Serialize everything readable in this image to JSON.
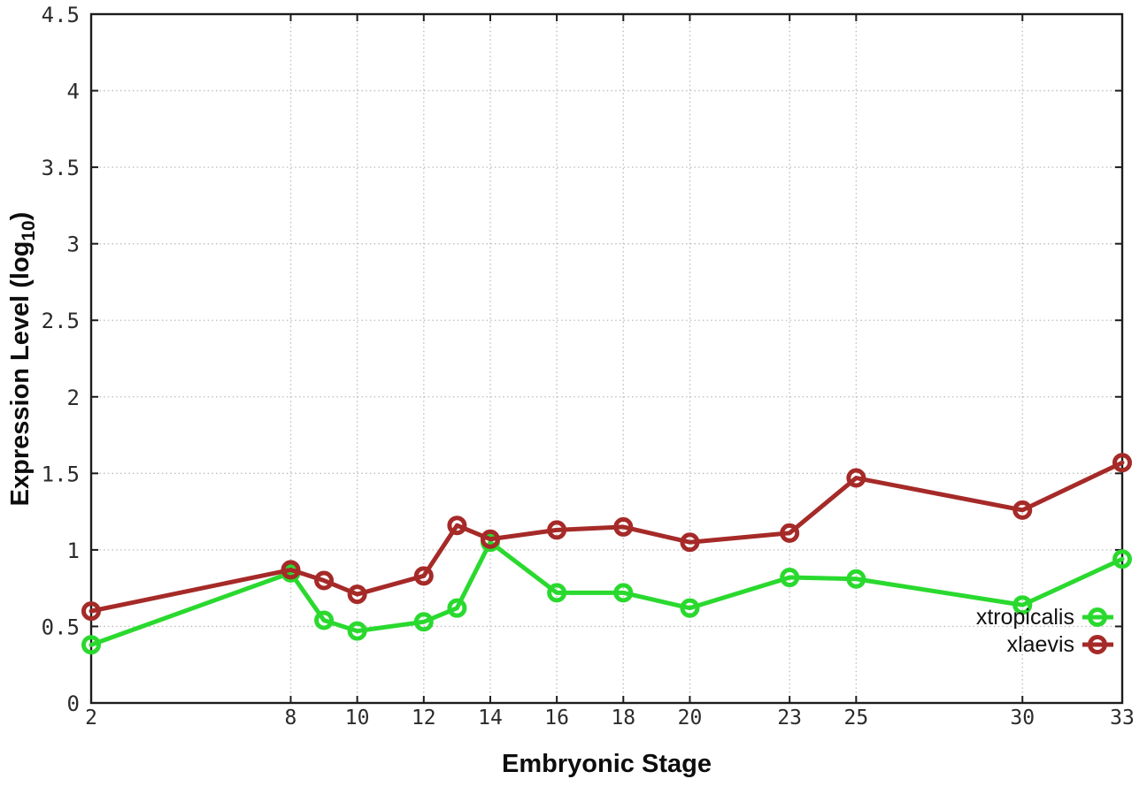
{
  "chart_data": {
    "type": "line",
    "title": "",
    "xlabel": "Embryonic Stage",
    "ylabel": "Expression Level (log10)",
    "ylabel_parts": {
      "pre": "Expression Level (log",
      "sub": "10",
      "post": ")"
    },
    "x": [
      2,
      8,
      9,
      10,
      12,
      13,
      14,
      16,
      18,
      20,
      23,
      25,
      30,
      33
    ],
    "series": [
      {
        "name": "xtropicalis",
        "color": "#2ad92e",
        "values": [
          0.38,
          0.85,
          0.54,
          0.47,
          0.53,
          0.62,
          1.05,
          0.72,
          0.72,
          0.62,
          0.82,
          0.81,
          0.64,
          0.94
        ]
      },
      {
        "name": "xlaevis",
        "color": "#a52a28",
        "values": [
          0.6,
          0.87,
          0.8,
          0.71,
          0.83,
          1.16,
          1.07,
          1.13,
          1.15,
          1.05,
          1.11,
          1.47,
          1.26,
          1.57
        ]
      }
    ],
    "xlim": [
      2,
      33
    ],
    "ylim": [
      0,
      4.5
    ],
    "x_ticks": [
      2,
      8,
      10,
      12,
      14,
      16,
      18,
      20,
      23,
      25,
      30,
      33
    ],
    "x_tick_labels": [
      "2",
      "8",
      "10",
      "12",
      "14",
      "16",
      "18",
      "20",
      "23",
      "25",
      "30",
      "33"
    ],
    "y_ticks": [
      0,
      0.5,
      1,
      1.5,
      2,
      2.5,
      3,
      3.5,
      4,
      4.5
    ],
    "y_tick_labels": [
      "0",
      "0.5",
      "1",
      "1.5",
      "2",
      "2.5",
      "3",
      "3.5",
      "4",
      "4.5"
    ],
    "grid": true,
    "grid_style": "dotted",
    "marker": "open-circle",
    "legend_position": "bottom-right",
    "style": {
      "background": "#ffffff",
      "border_color": "#1c1c1c",
      "grid_color": "#bcbcbc",
      "tick_text_color": "#2b2b2b",
      "label_text_color": "#0d0d0d",
      "legend_text_color": "#111111"
    }
  }
}
